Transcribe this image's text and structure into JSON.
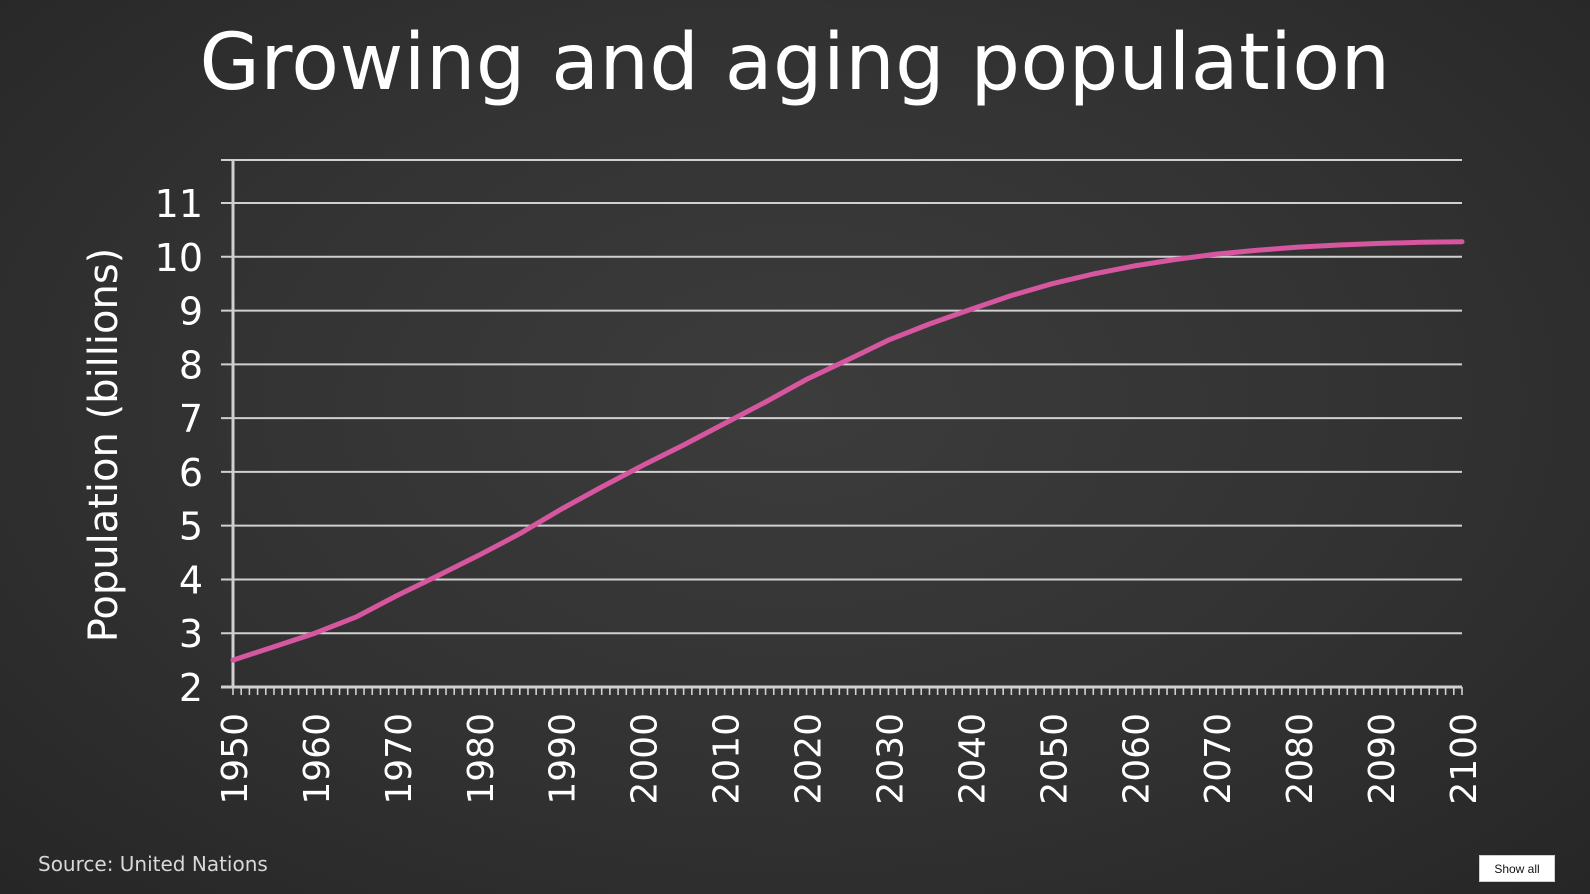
{
  "colors": {
    "line": "#d6569f",
    "grid": "#d0d0d0",
    "text": "#ffffff"
  },
  "footer": {
    "source": "Source: United Nations",
    "show_all_label": "Show all"
  },
  "chart_data": {
    "type": "line",
    "title": "Growing and aging population",
    "xlabel": "",
    "ylabel": "Population (billions)",
    "x_ticks": [
      "1950",
      "1960",
      "1970",
      "1980",
      "1990",
      "2000",
      "2010",
      "2020",
      "2030",
      "2040",
      "2050",
      "2060",
      "2070",
      "2080",
      "2090",
      "2100"
    ],
    "y_ticks": [
      "2",
      "3",
      "4",
      "5",
      "6",
      "7",
      "8",
      "9",
      "10",
      "11"
    ],
    "xlim": [
      1950,
      2100
    ],
    "ylim": [
      2,
      11.8
    ],
    "grid": true,
    "legend": "none",
    "series": [
      {
        "x": [
          1950,
          1955,
          1960,
          1965,
          1970,
          1975,
          1980,
          1985,
          1990,
          1995,
          2000,
          2005,
          2010,
          2015,
          2020,
          2025,
          2030,
          2035,
          2040,
          2045,
          2050,
          2055,
          2060,
          2065,
          2070,
          2075,
          2080,
          2085,
          2090,
          2095,
          2100
        ],
        "y": [
          2.5,
          2.75,
          3.0,
          3.3,
          3.7,
          4.07,
          4.45,
          4.85,
          5.3,
          5.72,
          6.12,
          6.5,
          6.9,
          7.3,
          7.72,
          8.08,
          8.45,
          8.75,
          9.02,
          9.28,
          9.5,
          9.68,
          9.83,
          9.95,
          10.05,
          10.12,
          10.18,
          10.22,
          10.25,
          10.27,
          10.28
        ]
      }
    ]
  }
}
